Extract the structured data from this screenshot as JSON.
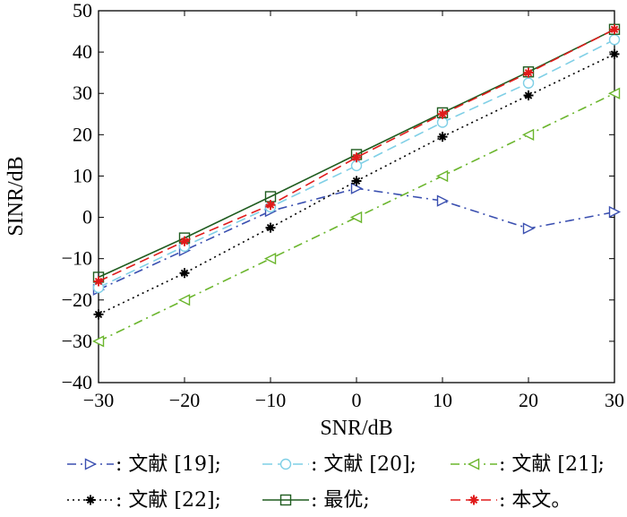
{
  "chart_data": {
    "type": "line",
    "title": "",
    "xlabel": "SNR/dB",
    "ylabel": "SINR/dB",
    "xlim": [
      -30,
      30
    ],
    "ylim": [
      -40,
      50
    ],
    "x_ticks": [
      -30,
      -20,
      -10,
      0,
      10,
      20,
      30
    ],
    "y_ticks": [
      -40,
      -30,
      -20,
      -10,
      0,
      10,
      20,
      30,
      40,
      50
    ],
    "x_tick_labels": [
      "−30",
      "−20",
      "−10",
      "0",
      "10",
      "20",
      "30"
    ],
    "y_tick_labels": [
      "−40",
      "−30",
      "−20",
      "−10",
      "0",
      "10",
      "20",
      "30",
      "40",
      "50"
    ],
    "grid": false,
    "legend_position": "bottom",
    "x": [
      -30,
      -20,
      -10,
      0,
      10,
      20,
      30
    ],
    "series": [
      {
        "name": ": 文献 [19];",
        "values": [
          -17.5,
          -8,
          1.5,
          7,
          4,
          -2.7,
          1.3
        ],
        "color": "#3a4fb0",
        "dash": "10,5,2,5",
        "marker": "triangle-right"
      },
      {
        "name": ": 文献 [20];",
        "values": [
          -17,
          -7,
          2.5,
          12.5,
          23,
          32.5,
          43
        ],
        "color": "#7fcfe6",
        "dash": "11,6",
        "marker": "circle"
      },
      {
        "name": ": 文献 [21];",
        "values": [
          -30,
          -20,
          -10,
          0,
          10,
          20,
          30
        ],
        "color": "#6ab52c",
        "dash": "10,5,2,5",
        "marker": "triangle-left"
      },
      {
        "name": ": 文献 [22];",
        "values": [
          -23.5,
          -13.5,
          -2.5,
          8.8,
          19.5,
          29.5,
          39.5
        ],
        "color": "#000000",
        "dash": "2,4",
        "marker": "star"
      },
      {
        "name": ": 最优;",
        "values": [
          -14.5,
          -5,
          5,
          15.2,
          25.3,
          35.2,
          45.5
        ],
        "color": "#1f5c1f",
        "dash": "",
        "marker": "square"
      },
      {
        "name": ": 本文。",
        "values": [
          -15.5,
          -5.8,
          3,
          14.5,
          25,
          35,
          45.5
        ],
        "color": "#e01b1b",
        "dash": "11,6",
        "marker": "star"
      }
    ]
  }
}
